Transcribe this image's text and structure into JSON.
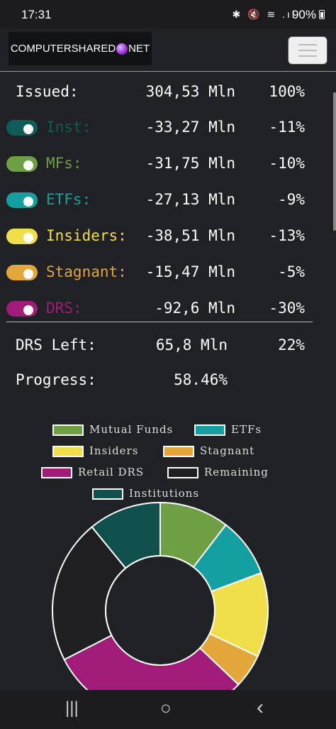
{
  "status_bar": {
    "time": "17:31",
    "icons": "✱ 🔇 ≋ .ıl",
    "battery": "90%"
  },
  "navbar": {
    "brand_left": "COMPUTERSHARED",
    "brand_right": "NET"
  },
  "summary": {
    "issued": {
      "label": "Issued:",
      "amount": "304,53 Mln",
      "pct": "100%"
    },
    "rows": [
      {
        "label": "Inst:",
        "amount": "-33,27 Mln",
        "pct": "-11%",
        "color": "#0f5c58"
      },
      {
        "label": "MFs:",
        "amount": "-31,75 Mln",
        "pct": "-10%",
        "color": "#6ea043"
      },
      {
        "label": "ETFs:",
        "amount": "-27,13 Mln",
        "pct": "-9%",
        "color": "#14a0a0"
      },
      {
        "label": "Insiders:",
        "amount": "-38,51 Mln",
        "pct": "-13%",
        "color": "#f0df4a"
      },
      {
        "label": "Stagnant:",
        "amount": "-15,47 Mln",
        "pct": "-5%",
        "color": "#e3a63a"
      },
      {
        "label": "DRS:",
        "amount": "-92,6 Mln",
        "pct": "-30%",
        "color": "#a01c78"
      }
    ],
    "drs_left": {
      "label": "DRS Left:",
      "amount": "65,8 Mln",
      "pct": "22%"
    },
    "progress": {
      "label": "Progress:",
      "value": "58.46%"
    }
  },
  "legend": [
    {
      "name": "Mutual Funds",
      "color": "#6ea043"
    },
    {
      "name": "ETFs",
      "color": "#14a0a0"
    },
    {
      "name": "Insiders",
      "color": "#f0df4a"
    },
    {
      "name": "Stagnant",
      "color": "#e3a63a"
    },
    {
      "name": "Retail DRS",
      "color": "#a01c78"
    },
    {
      "name": "Remaining",
      "color": "#1f1f22"
    },
    {
      "name": "Institutions",
      "color": "#0f4f4c"
    }
  ],
  "chart_data": {
    "type": "pie",
    "categories": [
      "Mutual Funds",
      "ETFs",
      "Insiders",
      "Stagnant",
      "Retail DRS",
      "Remaining",
      "Institutions"
    ],
    "values": [
      31.75,
      27.13,
      38.51,
      15.47,
      92.6,
      65.8,
      33.27
    ],
    "colors": [
      "#6ea043",
      "#14a0a0",
      "#f0df4a",
      "#e3a63a",
      "#a01c78",
      "#1f1f22",
      "#0f4f4c"
    ],
    "legend_position": "top"
  },
  "bottom_nav": {
    "recents": "|||",
    "home": "○",
    "back": "‹"
  }
}
